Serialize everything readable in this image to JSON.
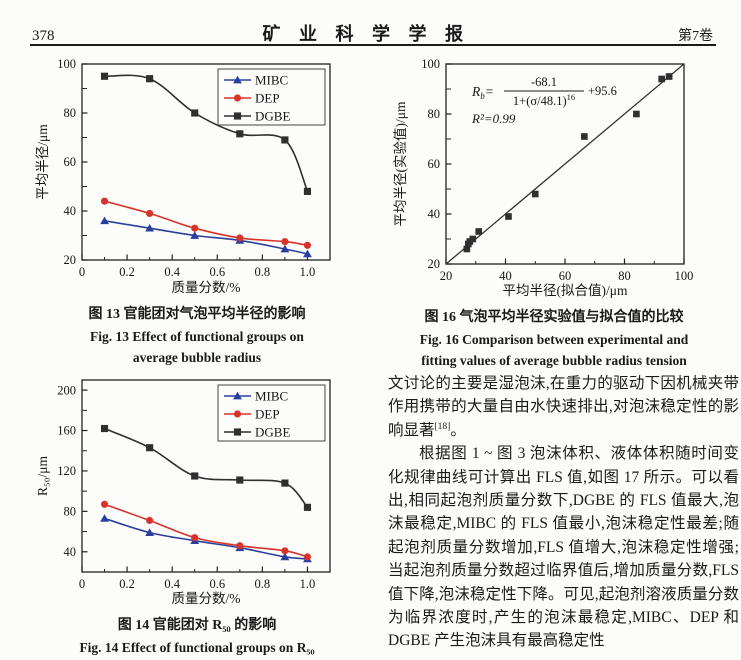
{
  "header": {
    "page_number": "378",
    "journal_title": "矿 业 科 学 学 报",
    "volume": "第7卷"
  },
  "figures": {
    "fig13": {
      "caption_zh": "图 13  官能团对气泡平均半径的影响",
      "caption_en1": "Fig. 13  Effect of functional groups on",
      "caption_en2": "average bubble radius"
    },
    "fig16": {
      "caption_zh": "图 16  气泡平均半径实验值与拟合值的比较",
      "caption_en1": "Fig. 16  Comparison between experimental and",
      "caption_en2": "fitting values of average bubble radius tension"
    },
    "fig14": {
      "caption_zh": "图 14  官能团对 R₅₀ 的影响",
      "caption_en1": "Fig. 14  Effect of functional groups on R₅₀"
    }
  },
  "article": {
    "p1a": "文讨论的主要是湿泡沫,在重力的驱动下因机械夹带作用携带的大量自由水快速排出,对泡沫稳定性的影响显著",
    "p1_ref": "[18]",
    "p1b": "。",
    "p2": "根据图 1 ~ 图 3 泡沫体积、液体体积随时间变化规律曲线可计算出 FLS 值,如图 17 所示。可以看出,相同起泡剂质量分数下,DGBE 的 FLS 值最大,泡沫最稳定,MIBC 的 FLS 值最小,泡沫稳定性最差;随起泡剂质量分数增加,FLS 值增大,泡沫稳定性增强;当起泡剂质量分数超过临界值后,增加质量分数,FLS 值下降,泡沫稳定性下降。可见,起泡剂溶液质量分数为临界浓度时,产生的泡沫最稳定,MIBC、DEP 和 DGBE 产生泡沫具有最高稳定性"
  },
  "colors": {
    "mibc_blue": "#2a3f9d",
    "dep_red": "#d8332a",
    "dgbe_black": "#2f2f2f",
    "axis": "#222222"
  },
  "chart_data": [
    {
      "id": "fig13",
      "type": "line",
      "title": "官能团对气泡平均半径的影响",
      "xlabel": "质量分数/%",
      "ylabel": "平均半径/μm",
      "xlim": [
        0,
        1.1
      ],
      "ylim": [
        20,
        100
      ],
      "xticks": [
        0,
        0.2,
        0.4,
        0.6,
        0.8,
        1.0
      ],
      "xtick_labels": [
        "0",
        "0.2",
        "0.4",
        "0.6",
        "0.8",
        "1.0"
      ],
      "yticks": [
        20,
        40,
        60,
        80,
        100
      ],
      "ytick_labels": [
        "20",
        "40",
        "60",
        "80",
        "100"
      ],
      "minor_x_step": 0.1,
      "minor_y_step": 10,
      "grid": false,
      "legend_position": "top-right",
      "x": [
        0.1,
        0.3,
        0.5,
        0.7,
        0.9,
        1.0
      ],
      "series": [
        {
          "name": "MIBC",
          "color": "#2a3f9d",
          "marker": "triangle",
          "values": [
            36,
            33,
            30,
            28,
            24.5,
            22.5
          ]
        },
        {
          "name": "DEP",
          "color": "#d8332a",
          "marker": "circle",
          "values": [
            44,
            39,
            33,
            29,
            27.5,
            26
          ]
        },
        {
          "name": "DGBE",
          "color": "#2f2f2f",
          "marker": "square",
          "values": [
            95,
            94,
            80,
            71.5,
            69,
            48
          ]
        }
      ]
    },
    {
      "id": "fig16",
      "type": "scatter",
      "title": "气泡平均半径实验值与拟合值的比较",
      "xlabel": "平均半径(拟合值)/μm",
      "ylabel": "平均半径(实验值)/μm",
      "xlim": [
        20,
        100
      ],
      "ylim": [
        20,
        100
      ],
      "xticks": [
        20,
        40,
        60,
        80,
        100
      ],
      "xtick_labels": [
        "20",
        "40",
        "60",
        "80",
        "100"
      ],
      "yticks": [
        20,
        40,
        60,
        80,
        100
      ],
      "ytick_labels": [
        "20",
        "40",
        "60",
        "80",
        "100"
      ],
      "minor_x_step": 10,
      "minor_y_step": 10,
      "grid": false,
      "marker": "square",
      "marker_color": "#2f2f2f",
      "points": [
        [
          27,
          26
        ],
        [
          27.5,
          28
        ],
        [
          28,
          29
        ],
        [
          29,
          30
        ],
        [
          31,
          33
        ],
        [
          41,
          39
        ],
        [
          50,
          48
        ],
        [
          66.5,
          71
        ],
        [
          84,
          80
        ],
        [
          92.5,
          94
        ],
        [
          95,
          95
        ]
      ],
      "fit_line": [
        [
          20,
          20
        ],
        [
          100,
          100
        ]
      ],
      "equation": {
        "lhs": "R",
        "lhs_sub": "b",
        "eq_sign": "=",
        "numerator": "-68.1",
        "den_base": "1+(σ/48.1)",
        "den_exp": "16",
        "suffix": "+95.6"
      },
      "r_squared": "R²=0.99"
    },
    {
      "id": "fig14",
      "type": "line",
      "title": "官能团对R₅₀的影响",
      "xlabel": "质量分数/%",
      "ylabel": "R₅₀/μm",
      "xlim": [
        0,
        1.1
      ],
      "ylim": [
        20,
        210
      ],
      "xticks": [
        0,
        0.2,
        0.4,
        0.6,
        0.8,
        1.0
      ],
      "xtick_labels": [
        "0",
        "0.2",
        "0.4",
        "0.6",
        "0.8",
        "1.0"
      ],
      "yticks": [
        40,
        80,
        120,
        160,
        200
      ],
      "ytick_labels": [
        "40",
        "80",
        "120",
        "160",
        "200"
      ],
      "minor_x_step": 0.1,
      "minor_y_step": 20,
      "grid": false,
      "legend_position": "top-right",
      "x": [
        0.1,
        0.3,
        0.5,
        0.7,
        0.9,
        1.0
      ],
      "series": [
        {
          "name": "MIBC",
          "color": "#2a3f9d",
          "marker": "triangle",
          "values": [
            73,
            59,
            51,
            44,
            35,
            33
          ]
        },
        {
          "name": "DEP",
          "color": "#d8332a",
          "marker": "circle",
          "values": [
            87,
            71,
            54,
            46,
            41,
            35
          ]
        },
        {
          "name": "DGBE",
          "color": "#2f2f2f",
          "marker": "square",
          "values": [
            162,
            143,
            115,
            111,
            108,
            84
          ]
        }
      ]
    }
  ]
}
